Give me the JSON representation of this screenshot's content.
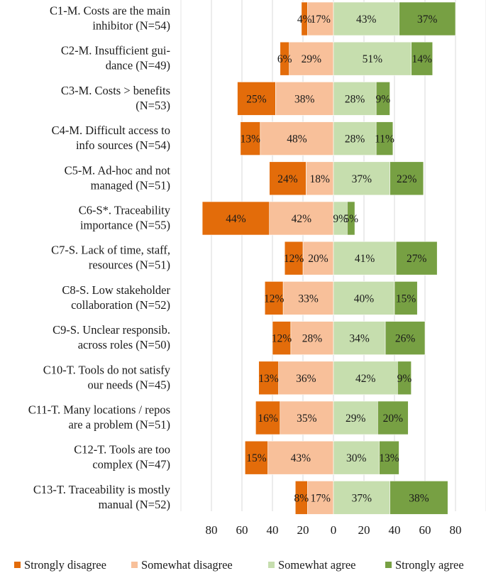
{
  "chart_data": {
    "type": "bar",
    "orientation": "horizontal",
    "stacking": "diverging",
    "title": "",
    "xlabel": "",
    "ylabel": "",
    "xlim": [
      -100,
      100
    ],
    "grid": true,
    "legend_position": "bottom",
    "x_ticks": [
      {
        "value": -80,
        "label": "80"
      },
      {
        "value": -60,
        "label": "60"
      },
      {
        "value": -40,
        "label": "40"
      },
      {
        "value": -20,
        "label": "20"
      },
      {
        "value": 0,
        "label": "0"
      },
      {
        "value": 20,
        "label": "20"
      },
      {
        "value": 40,
        "label": "40"
      },
      {
        "value": 60,
        "label": "60"
      },
      {
        "value": 80,
        "label": "80"
      }
    ],
    "categories": [
      {
        "id": "c1",
        "lines": [
          "C1-M. Costs are the main",
          "inhibitor (N=54)"
        ]
      },
      {
        "id": "c2",
        "lines": [
          "C2-M. Insufficient gui-",
          "dance (N=49)"
        ]
      },
      {
        "id": "c3",
        "lines": [
          "C3-M. Costs > benefits",
          "(N=53)"
        ]
      },
      {
        "id": "c4",
        "lines": [
          "C4-M. Difficult access to",
          "info sources (N=54)"
        ]
      },
      {
        "id": "c5",
        "lines": [
          "C5-M. Ad-hoc and not",
          "managed (N=51)"
        ]
      },
      {
        "id": "c6",
        "lines": [
          "C6-S*. Traceability",
          "importance (N=55)"
        ]
      },
      {
        "id": "c7",
        "lines": [
          "C7-S. Lack of time, staff,",
          "resources (N=51)"
        ]
      },
      {
        "id": "c8",
        "lines": [
          "C8-S. Low stakeholder",
          "collaboration (N=52)"
        ]
      },
      {
        "id": "c9",
        "lines": [
          "C9-S. Unclear responsib.",
          "across roles (N=50)"
        ]
      },
      {
        "id": "c10",
        "lines": [
          "C10-T. Tools do not satisfy",
          "our needs (N=45)"
        ]
      },
      {
        "id": "c11",
        "lines": [
          "C11-T. Many locations / repos",
          "are a problem (N=51)"
        ]
      },
      {
        "id": "c12",
        "lines": [
          "C12-T. Tools are too",
          "complex (N=47)"
        ]
      },
      {
        "id": "c13",
        "lines": [
          "C13-T. Traceability is mostly",
          "manual (N=52)"
        ]
      }
    ],
    "series": [
      {
        "name": "Strongly disagree",
        "side": "negative",
        "color": "#e36c0a",
        "values": [
          4,
          6,
          25,
          13,
          24,
          44,
          12,
          12,
          12,
          13,
          16,
          15,
          8
        ]
      },
      {
        "name": "Somewhat disagree",
        "side": "negative",
        "color": "#f8c09a",
        "values": [
          17,
          29,
          38,
          48,
          18,
          42,
          20,
          33,
          28,
          36,
          35,
          43,
          17
        ]
      },
      {
        "name": "Somewhat agree",
        "side": "positive",
        "color": "#c6deae",
        "values": [
          43,
          51,
          28,
          28,
          37,
          9,
          41,
          40,
          34,
          42,
          29,
          30,
          37
        ]
      },
      {
        "name": "Strongly agree",
        "side": "positive",
        "color": "#77a043",
        "values": [
          37,
          14,
          9,
          11,
          22,
          5,
          27,
          15,
          26,
          9,
          20,
          13,
          38
        ]
      }
    ]
  }
}
